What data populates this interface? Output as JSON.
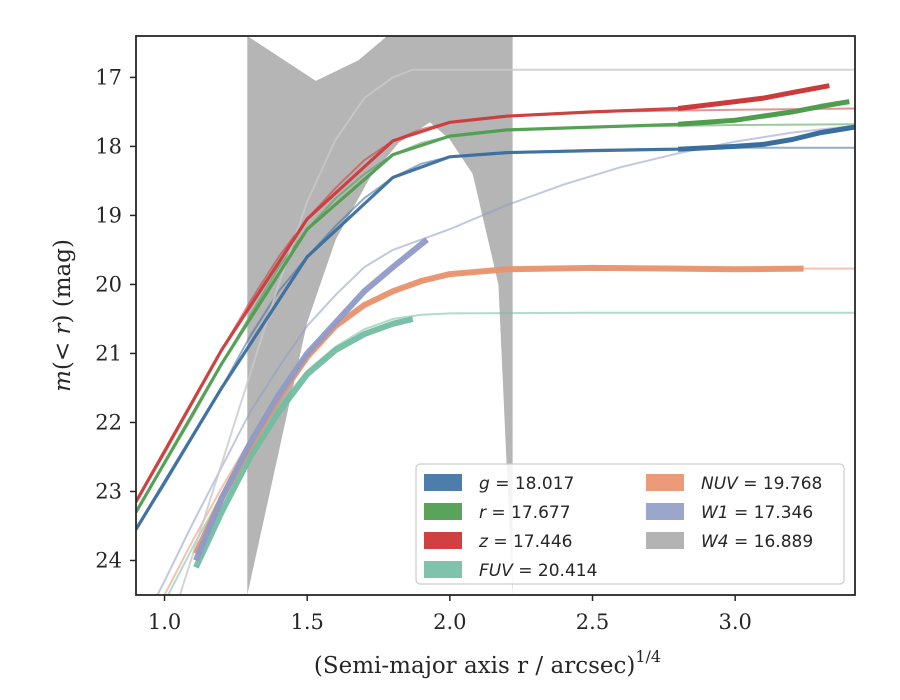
{
  "chart_data": {
    "type": "line",
    "xlabel": "(Semi-major axis r / arcsec)",
    "xlabel_superscript": "1/4",
    "ylabel_prefix": "m(< ",
    "ylabel_var": "r",
    "ylabel_suffix": ") (mag)",
    "xlim": [
      0.9,
      3.42
    ],
    "ylim": [
      24.5,
      16.4
    ],
    "y_inverted": true,
    "xticks": [
      1.0,
      1.5,
      2.0,
      2.5,
      3.0
    ],
    "xtick_labels": [
      "1.0",
      "1.5",
      "2.0",
      "2.5",
      "3.0"
    ],
    "yticks": [
      17,
      18,
      19,
      20,
      21,
      22,
      23,
      24
    ],
    "ytick_labels": [
      "17",
      "18",
      "19",
      "20",
      "21",
      "22",
      "23",
      "24"
    ],
    "grid": false,
    "legend_position": "bottom-right",
    "legend": [
      {
        "band": "g",
        "italic": true,
        "label": "= 18.017",
        "color": "#4c7dab"
      },
      {
        "band": "r",
        "italic": true,
        "label": "= 17.677",
        "color": "#5aa35a"
      },
      {
        "band": "z",
        "italic": true,
        "label": "= 17.446",
        "color": "#d04040"
      },
      {
        "band": "FUV",
        "italic": true,
        "label": "= 20.414",
        "color": "#7fc3ad"
      },
      {
        "band": "NUV",
        "italic": true,
        "label": "= 19.768",
        "color": "#eb9a7a"
      },
      {
        "band": "W1",
        "italic": true,
        "label": "= 17.346",
        "color": "#9aa6cc"
      },
      {
        "band": "W4",
        "italic": true,
        "label": "= 16.889",
        "color": "#b3b3b3"
      }
    ],
    "series": [
      {
        "name": "g",
        "color": "#3a6e9e",
        "model": [
          [
            0.9,
            23.55
          ],
          [
            1.0,
            22.9
          ],
          [
            1.1,
            22.2
          ],
          [
            1.2,
            21.5
          ],
          [
            1.3,
            20.75
          ],
          [
            1.4,
            20.1
          ],
          [
            1.5,
            19.6
          ],
          [
            1.6,
            19.15
          ],
          [
            1.7,
            18.75
          ],
          [
            1.8,
            18.45
          ],
          [
            1.9,
            18.25
          ],
          [
            2.0,
            18.15
          ],
          [
            2.2,
            18.09
          ],
          [
            2.5,
            18.05
          ],
          [
            3.0,
            18.02
          ],
          [
            3.42,
            18.02
          ]
        ],
        "measured": [
          [
            0.9,
            23.55
          ],
          [
            1.2,
            21.5
          ],
          [
            1.5,
            19.6
          ],
          [
            1.8,
            18.45
          ],
          [
            2.0,
            18.15
          ],
          [
            2.2,
            18.09
          ],
          [
            2.5,
            18.06
          ],
          [
            2.8,
            18.04
          ],
          [
            3.0,
            18.0
          ],
          [
            3.1,
            17.97
          ],
          [
            3.2,
            17.9
          ],
          [
            3.3,
            17.8
          ],
          [
            3.42,
            17.72
          ]
        ]
      },
      {
        "name": "r",
        "color": "#4f9e50",
        "model": [
          [
            0.9,
            23.3
          ],
          [
            1.0,
            22.6
          ],
          [
            1.1,
            21.9
          ],
          [
            1.2,
            21.15
          ],
          [
            1.3,
            20.45
          ],
          [
            1.4,
            19.75
          ],
          [
            1.5,
            19.2
          ],
          [
            1.6,
            18.75
          ],
          [
            1.7,
            18.4
          ],
          [
            1.8,
            18.12
          ],
          [
            1.9,
            17.95
          ],
          [
            2.0,
            17.85
          ],
          [
            2.2,
            17.76
          ],
          [
            2.5,
            17.72
          ],
          [
            3.0,
            17.69
          ],
          [
            3.42,
            17.68
          ]
        ],
        "measured": [
          [
            0.9,
            23.3
          ],
          [
            1.2,
            21.15
          ],
          [
            1.5,
            19.2
          ],
          [
            1.8,
            18.12
          ],
          [
            2.0,
            17.85
          ],
          [
            2.2,
            17.76
          ],
          [
            2.5,
            17.72
          ],
          [
            2.8,
            17.68
          ],
          [
            3.0,
            17.62
          ],
          [
            3.2,
            17.5
          ],
          [
            3.3,
            17.42
          ],
          [
            3.4,
            17.35
          ]
        ]
      },
      {
        "name": "z",
        "color": "#cc3b3b",
        "model": [
          [
            0.9,
            23.15
          ],
          [
            1.0,
            22.45
          ],
          [
            1.1,
            21.7
          ],
          [
            1.2,
            20.95
          ],
          [
            1.3,
            20.25
          ],
          [
            1.4,
            19.6
          ],
          [
            1.5,
            19.05
          ],
          [
            1.6,
            18.6
          ],
          [
            1.7,
            18.2
          ],
          [
            1.8,
            17.92
          ],
          [
            1.9,
            17.75
          ],
          [
            2.0,
            17.65
          ],
          [
            2.2,
            17.56
          ],
          [
            2.5,
            17.5
          ],
          [
            3.0,
            17.47
          ],
          [
            3.42,
            17.45
          ]
        ],
        "measured": [
          [
            0.9,
            23.15
          ],
          [
            1.2,
            20.95
          ],
          [
            1.5,
            19.05
          ],
          [
            1.8,
            17.92
          ],
          [
            2.0,
            17.65
          ],
          [
            2.2,
            17.56
          ],
          [
            2.5,
            17.5
          ],
          [
            2.8,
            17.45
          ],
          [
            3.0,
            17.35
          ],
          [
            3.1,
            17.3
          ],
          [
            3.2,
            17.22
          ],
          [
            3.33,
            17.12
          ]
        ]
      },
      {
        "name": "FUV",
        "color": "#72bda2",
        "model": [
          [
            0.9,
            25.4
          ],
          [
            1.0,
            24.6
          ],
          [
            1.1,
            23.8
          ],
          [
            1.2,
            23.05
          ],
          [
            1.3,
            22.35
          ],
          [
            1.4,
            21.75
          ],
          [
            1.5,
            21.25
          ],
          [
            1.6,
            20.9
          ],
          [
            1.7,
            20.65
          ],
          [
            1.8,
            20.5
          ],
          [
            1.9,
            20.44
          ],
          [
            2.0,
            20.42
          ],
          [
            2.5,
            20.41
          ],
          [
            3.42,
            20.41
          ]
        ],
        "measured": [
          [
            1.11,
            24.1
          ],
          [
            1.2,
            23.3
          ],
          [
            1.3,
            22.5
          ],
          [
            1.4,
            21.85
          ],
          [
            1.5,
            21.3
          ],
          [
            1.6,
            20.95
          ],
          [
            1.7,
            20.72
          ],
          [
            1.8,
            20.57
          ],
          [
            1.87,
            20.5
          ]
        ]
      },
      {
        "name": "NUV",
        "color": "#e8926f",
        "model": [
          [
            0.9,
            25.3
          ],
          [
            1.0,
            24.5
          ],
          [
            1.1,
            23.7
          ],
          [
            1.2,
            22.95
          ],
          [
            1.3,
            22.25
          ],
          [
            1.4,
            21.6
          ],
          [
            1.5,
            21.05
          ],
          [
            1.6,
            20.6
          ],
          [
            1.7,
            20.3
          ],
          [
            1.8,
            20.1
          ],
          [
            1.9,
            19.95
          ],
          [
            2.0,
            19.85
          ],
          [
            2.2,
            19.79
          ],
          [
            2.5,
            19.77
          ],
          [
            3.42,
            19.77
          ]
        ],
        "measured": [
          [
            1.11,
            23.9
          ],
          [
            1.2,
            23.1
          ],
          [
            1.3,
            22.35
          ],
          [
            1.4,
            21.65
          ],
          [
            1.5,
            21.05
          ],
          [
            1.6,
            20.6
          ],
          [
            1.7,
            20.3
          ],
          [
            1.8,
            20.1
          ],
          [
            1.9,
            19.95
          ],
          [
            2.0,
            19.85
          ],
          [
            2.2,
            19.78
          ],
          [
            2.5,
            19.76
          ],
          [
            2.8,
            19.77
          ],
          [
            3.0,
            19.78
          ],
          [
            3.24,
            19.77
          ]
        ]
      },
      {
        "name": "W1",
        "color": "#8e9bc6",
        "model": [
          [
            0.9,
            25.1
          ],
          [
            1.0,
            24.3
          ],
          [
            1.1,
            23.45
          ],
          [
            1.2,
            22.65
          ],
          [
            1.3,
            21.85
          ],
          [
            1.4,
            21.2
          ],
          [
            1.5,
            20.6
          ],
          [
            1.6,
            20.15
          ],
          [
            1.7,
            19.75
          ],
          [
            1.8,
            19.5
          ],
          [
            1.9,
            19.35
          ],
          [
            2.0,
            19.2
          ],
          [
            2.2,
            18.85
          ],
          [
            2.4,
            18.55
          ],
          [
            2.6,
            18.3
          ],
          [
            2.8,
            18.1
          ],
          [
            3.0,
            17.93
          ],
          [
            3.2,
            17.8
          ],
          [
            3.42,
            17.7
          ]
        ],
        "measured": [
          [
            1.11,
            24.0
          ],
          [
            1.2,
            23.1
          ],
          [
            1.3,
            22.3
          ],
          [
            1.4,
            21.6
          ],
          [
            1.5,
            21.0
          ],
          [
            1.6,
            20.55
          ],
          [
            1.7,
            20.1
          ],
          [
            1.8,
            19.75
          ],
          [
            1.92,
            19.35
          ]
        ]
      },
      {
        "name": "W4",
        "color": "#c9c9c9",
        "model": [
          [
            0.9,
            26.5
          ],
          [
            1.0,
            25.2
          ],
          [
            1.1,
            23.9
          ],
          [
            1.2,
            22.6
          ],
          [
            1.3,
            21.3
          ],
          [
            1.4,
            20.0
          ],
          [
            1.5,
            18.8
          ],
          [
            1.6,
            17.9
          ],
          [
            1.7,
            17.3
          ],
          [
            1.8,
            17.0
          ],
          [
            1.87,
            16.889
          ],
          [
            3.42,
            16.889
          ]
        ],
        "band_region": [
          [
            1.29,
            16.4
          ],
          [
            1.53,
            17.05
          ],
          [
            1.68,
            16.75
          ],
          [
            1.78,
            16.4
          ],
          [
            2.22,
            16.4
          ],
          [
            2.22,
            24.5
          ],
          [
            2.17,
            20.0
          ],
          [
            2.08,
            18.4
          ],
          [
            2.0,
            17.9
          ],
          [
            1.93,
            17.65
          ],
          [
            1.82,
            17.95
          ],
          [
            1.72,
            18.45
          ],
          [
            1.6,
            19.35
          ],
          [
            1.5,
            20.55
          ],
          [
            1.29,
            24.5
          ]
        ]
      }
    ]
  }
}
